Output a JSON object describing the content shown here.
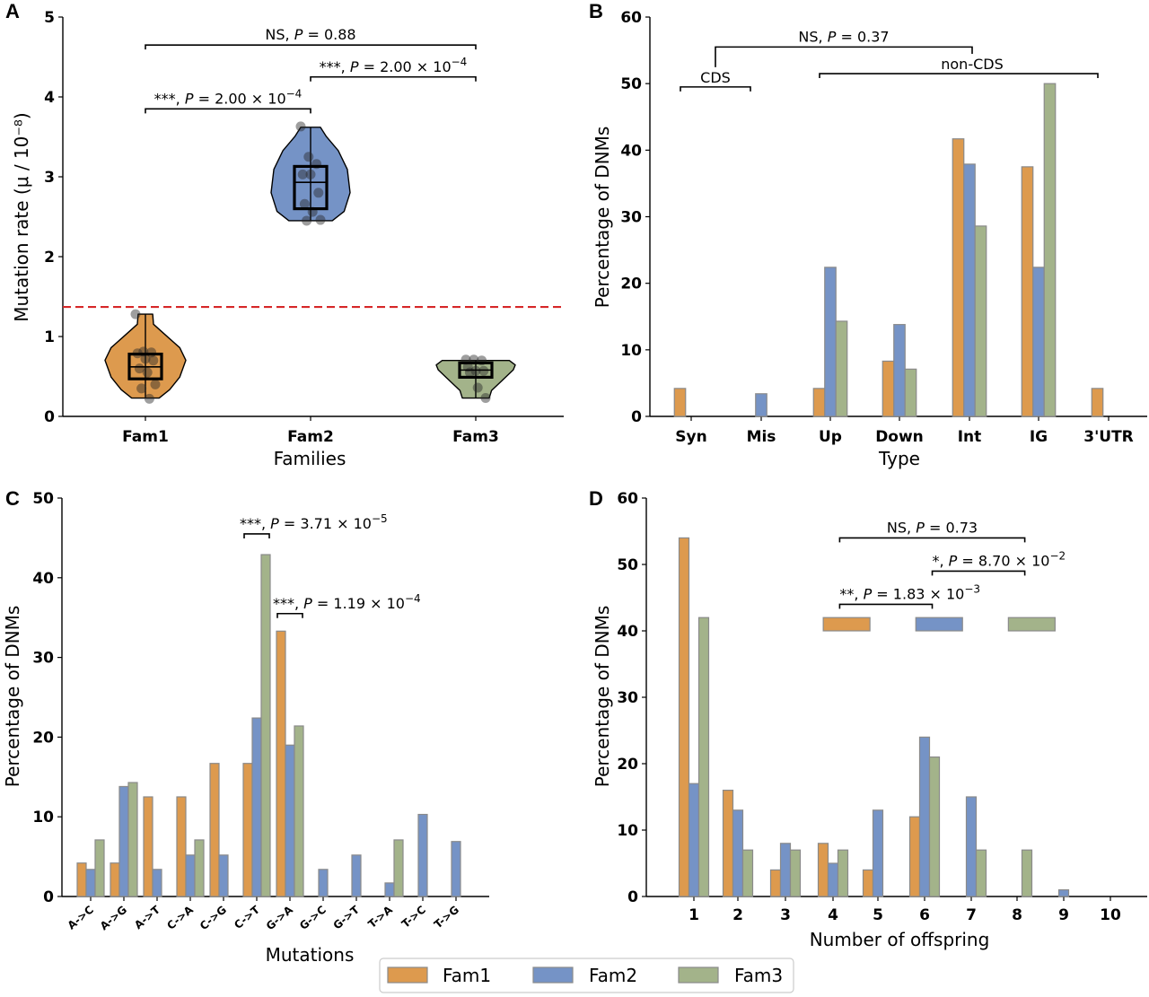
{
  "colors": {
    "Fam1": "#dd9a4e",
    "Fam2": "#7593c6",
    "Fam3": "#a3b38a",
    "edge": "#8a8a8a",
    "reference_line": "#d62728"
  },
  "legend": {
    "entries": [
      "Fam1",
      "Fam2",
      "Fam3"
    ],
    "placement": "bottom-center"
  },
  "chart_data": [
    {
      "panel": "A",
      "type": "violin",
      "xlabel": "Families",
      "ylabel": "Mutation rate (μ / 10⁻⁸)",
      "ylim": [
        0,
        5
      ],
      "yticks": [
        "0",
        "1",
        "2",
        "3",
        "4",
        "5"
      ],
      "categories": [
        "Fam1",
        "Fam2",
        "Fam3"
      ],
      "reference_line": 1.37,
      "series": [
        {
          "name": "Fam1",
          "min": 0.23,
          "q1": 0.47,
          "median": 0.62,
          "q3": 0.78,
          "max": 1.28,
          "points": [
            1.28,
            0.81,
            0.8,
            0.79,
            0.72,
            0.7,
            0.6,
            0.55,
            0.4,
            0.35,
            0.22
          ]
        },
        {
          "name": "Fam2",
          "min": 2.45,
          "q1": 2.6,
          "median": 2.93,
          "q3": 3.13,
          "max": 3.62,
          "points": [
            3.63,
            3.25,
            3.16,
            3.03,
            3.03,
            2.8,
            2.66,
            2.56,
            2.46,
            2.45
          ]
        },
        {
          "name": "Fam3",
          "min": 0.23,
          "q1": 0.49,
          "median": 0.58,
          "q3": 0.67,
          "max": 0.7,
          "points": [
            0.71,
            0.71,
            0.7,
            0.62,
            0.57,
            0.57,
            0.55,
            0.36,
            0.23
          ]
        }
      ],
      "annotations": [
        {
          "from": 0,
          "to": 2,
          "y": 4.65,
          "label_prefix": "NS, ",
          "p": "0.88",
          "exp": ""
        },
        {
          "from": 1,
          "to": 2,
          "y": 4.25,
          "label_prefix": "***, ",
          "p": "2.00 × 10",
          "exp": "−4"
        },
        {
          "from": 0,
          "to": 1,
          "y": 3.85,
          "label_prefix": "***, ",
          "p": "2.00 × 10",
          "exp": "−4"
        }
      ]
    },
    {
      "panel": "B",
      "type": "bar",
      "xlabel": "Type",
      "ylabel": "Percentage of DNMs",
      "ylim": [
        0,
        60
      ],
      "yticks": [
        "0",
        "10",
        "20",
        "30",
        "40",
        "50",
        "60"
      ],
      "categories": [
        "Syn",
        "Mis",
        "Up",
        "Down",
        "Int",
        "IG",
        "3'UTR"
      ],
      "series": [
        {
          "name": "Fam1",
          "values": [
            4.2,
            0,
            4.2,
            8.3,
            41.7,
            37.5,
            4.2
          ]
        },
        {
          "name": "Fam2",
          "values": [
            0,
            3.4,
            22.4,
            13.8,
            37.9,
            22.4,
            0
          ]
        },
        {
          "name": "Fam3",
          "values": [
            0,
            0,
            14.3,
            7.1,
            28.6,
            50.0,
            0
          ]
        }
      ],
      "groups": [
        {
          "label": "CDS",
          "from": 0,
          "to": 1,
          "y": 49.5
        },
        {
          "label": "non-CDS",
          "from": 2,
          "to": 6,
          "y": 51.5
        }
      ],
      "annotations": [
        {
          "label_prefix": "NS, ",
          "p": "0.37",
          "exp": "",
          "y": 55.5
        }
      ]
    },
    {
      "panel": "C",
      "type": "bar",
      "xlabel": "Mutations",
      "ylabel": "Percentage of DNMs",
      "ylim": [
        0,
        50
      ],
      "yticks": [
        "0",
        "10",
        "20",
        "30",
        "40",
        "50"
      ],
      "categories": [
        "A->C",
        "A->G",
        "A->T",
        "C->A",
        "C->G",
        "C->T",
        "G->A",
        "G->C",
        "G->T",
        "T->A",
        "T->C",
        "T->G"
      ],
      "series": [
        {
          "name": "Fam1",
          "values": [
            4.2,
            4.2,
            12.5,
            12.5,
            16.7,
            16.7,
            33.3,
            0,
            0,
            0,
            0,
            0
          ]
        },
        {
          "name": "Fam2",
          "values": [
            3.4,
            13.8,
            3.4,
            5.2,
            5.2,
            22.4,
            19.0,
            3.4,
            5.2,
            1.7,
            10.3,
            6.9
          ]
        },
        {
          "name": "Fam3",
          "values": [
            7.1,
            14.3,
            0,
            7.1,
            0,
            42.9,
            21.4,
            0,
            0,
            7.1,
            0,
            0
          ]
        }
      ],
      "annotations": [
        {
          "category": 5,
          "y": 45.5,
          "label_prefix": "***, ",
          "p": "3.71 × 10",
          "exp": "−5"
        },
        {
          "category": 6,
          "y": 35.5,
          "label_prefix": "***, ",
          "p": "1.19 × 10",
          "exp": "−4"
        }
      ]
    },
    {
      "panel": "D",
      "type": "bar",
      "xlabel": "Number of offspring",
      "ylabel": "Percentage of DNMs",
      "ylim": [
        0,
        60
      ],
      "yticks": [
        "0",
        "10",
        "20",
        "30",
        "40",
        "50",
        "60"
      ],
      "categories": [
        "1",
        "2",
        "3",
        "4",
        "5",
        "6",
        "7",
        "8",
        "9",
        "10"
      ],
      "series": [
        {
          "name": "Fam1",
          "values": [
            54,
            16,
            4,
            8,
            4,
            12,
            0,
            0,
            0,
            0
          ]
        },
        {
          "name": "Fam2",
          "values": [
            17,
            13,
            8,
            5,
            13,
            24,
            15,
            0,
            1,
            0
          ]
        },
        {
          "name": "Fam3",
          "values": [
            42,
            7,
            7,
            7,
            0,
            21,
            7,
            7,
            0,
            0
          ]
        }
      ],
      "family_markers": {
        "y": 41,
        "centers": [
          4.3,
          6.3,
          8.3
        ]
      },
      "annotations": [
        {
          "from": 0,
          "to": 2,
          "y": 54,
          "label_prefix": "NS, ",
          "p": "0.73",
          "exp": ""
        },
        {
          "from": 1,
          "to": 2,
          "y": 49,
          "label_prefix": "*, ",
          "p": "8.70 × 10",
          "exp": "−2"
        },
        {
          "from": 0,
          "to": 1,
          "y": 44,
          "label_prefix": "**, ",
          "p": "1.83 × 10",
          "exp": "−3"
        }
      ]
    }
  ]
}
